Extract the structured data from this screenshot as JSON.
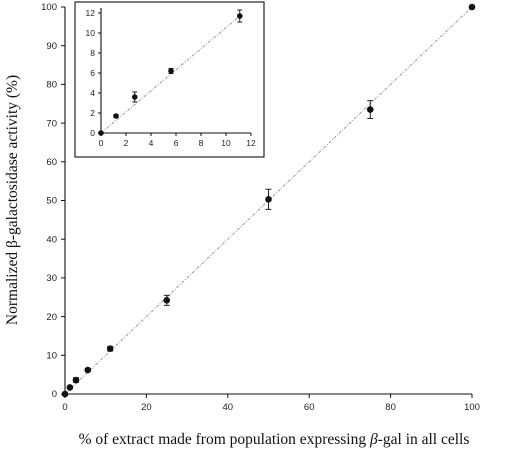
{
  "chart_data": [
    {
      "type": "scatter",
      "title": "",
      "xlabel_parts": [
        "% of extract made from population expressing ",
        "β",
        "-gal in all cells"
      ],
      "ylabel_parts": [
        "Normalized ",
        "β",
        "-galactosidase activity (%)"
      ],
      "xlim": [
        0,
        100
      ],
      "ylim": [
        0,
        100
      ],
      "xticks": [
        0,
        20,
        40,
        60,
        80,
        100
      ],
      "yticks": [
        0,
        10,
        20,
        30,
        40,
        50,
        60,
        70,
        80,
        90,
        100
      ],
      "grid": false,
      "series": [
        {
          "x": [
            0,
            1.2,
            2.7,
            5.6,
            11.1,
            25,
            50,
            75,
            100
          ],
          "y": [
            0,
            1.7,
            3.6,
            6.2,
            11.7,
            24.2,
            50.3,
            73.5,
            100
          ],
          "err": [
            0,
            0.2,
            0.6,
            0.3,
            0.6,
            1.3,
            2.6,
            2.3,
            0
          ]
        }
      ],
      "fit_line": {
        "x": [
          0,
          100
        ],
        "y": [
          0,
          100
        ]
      }
    },
    {
      "type": "scatter",
      "title": "",
      "role": "inset",
      "xlim": [
        0,
        12
      ],
      "ylim": [
        0,
        12.5
      ],
      "xticks": [
        0,
        2,
        4,
        6,
        8,
        10,
        12
      ],
      "yticks": [
        0,
        2,
        4,
        6,
        8,
        10,
        12
      ],
      "grid": false,
      "series": [
        {
          "x": [
            0,
            1.2,
            2.7,
            5.6,
            11.1
          ],
          "y": [
            0,
            1.7,
            3.6,
            6.2,
            11.7
          ],
          "err": [
            0,
            0.15,
            0.5,
            0.25,
            0.6
          ]
        }
      ],
      "fit_line": {
        "x": [
          0,
          11.1
        ],
        "y": [
          0,
          11.7
        ]
      }
    }
  ]
}
